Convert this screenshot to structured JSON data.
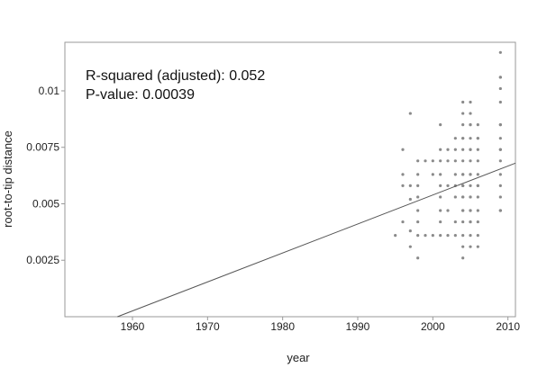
{
  "chart_data": {
    "type": "scatter",
    "title": "",
    "xlabel": "year",
    "ylabel": "root-to-tip distance",
    "xlim": [
      1951,
      2011
    ],
    "ylim": [
      0,
      0.01215
    ],
    "xticks": [
      1960,
      1970,
      1980,
      1990,
      2000,
      2010
    ],
    "xtick_labels": [
      "1960",
      "1970",
      "1980",
      "1990",
      "2000",
      "2010"
    ],
    "yticks": [
      0.0025,
      0.005,
      0.0075,
      0.01
    ],
    "ytick_labels": [
      "0.0025",
      "0.005",
      "0.0075",
      "0.01"
    ],
    "grid": false,
    "annotations": [
      "R-squared (adjusted): 0.052",
      "P-value: 0.00039"
    ],
    "regression_line": {
      "x": [
        1958,
        2011
      ],
      "y": [
        0.0,
        0.0068
      ]
    },
    "colors": {
      "points": "#8a8a8a",
      "line": "#555555",
      "frame": "#999999"
    },
    "points": {
      "x": [
        1995,
        1996,
        1996,
        1996,
        1996,
        1997,
        1997,
        1997,
        1997,
        1997,
        1998,
        1998,
        1998,
        1998,
        1998,
        1998,
        1998,
        1998,
        1999,
        1999,
        2000,
        2000,
        2000,
        2001,
        2001,
        2001,
        2001,
        2001,
        2001,
        2001,
        2001,
        2001,
        2002,
        2002,
        2002,
        2002,
        2002,
        2003,
        2003,
        2003,
        2003,
        2003,
        2003,
        2003,
        2003,
        2004,
        2004,
        2004,
        2004,
        2004,
        2004,
        2004,
        2004,
        2004,
        2004,
        2004,
        2004,
        2004,
        2004,
        2004,
        2004,
        2004,
        2004,
        2004,
        2005,
        2005,
        2005,
        2005,
        2005,
        2005,
        2005,
        2005,
        2005,
        2005,
        2005,
        2005,
        2005,
        2005,
        2005,
        2005,
        2005,
        2005,
        2005,
        2006,
        2006,
        2006,
        2006,
        2006,
        2006,
        2006,
        2006,
        2006,
        2006,
        2006,
        2006,
        2006,
        2009,
        2009,
        2009,
        2009,
        2009,
        2009,
        2009,
        2009,
        2009,
        2009,
        2009,
        2009,
        2009,
        2009,
        2009,
        2009
      ],
      "y": [
        0.0036,
        0.0074,
        0.0063,
        0.0058,
        0.0042,
        0.009,
        0.0058,
        0.0052,
        0.0038,
        0.0031,
        0.0069,
        0.0063,
        0.0058,
        0.0053,
        0.0047,
        0.0042,
        0.0036,
        0.0026,
        0.0069,
        0.0036,
        0.0069,
        0.0063,
        0.0036,
        0.0085,
        0.0074,
        0.0069,
        0.0063,
        0.0058,
        0.0053,
        0.0047,
        0.0042,
        0.0036,
        0.0074,
        0.0069,
        0.0058,
        0.0047,
        0.0036,
        0.0079,
        0.0074,
        0.0069,
        0.0063,
        0.0058,
        0.0053,
        0.0042,
        0.0036,
        0.0095,
        0.009,
        0.0085,
        0.0079,
        0.0074,
        0.0069,
        0.0063,
        0.0058,
        0.0053,
        0.0047,
        0.0042,
        0.0036,
        0.0031,
        0.0026,
        0.0063,
        0.0053,
        0.0047,
        0.0079,
        0.0058,
        0.0095,
        0.0085,
        0.0079,
        0.0074,
        0.0069,
        0.0063,
        0.0058,
        0.0053,
        0.0047,
        0.0042,
        0.0036,
        0.0031,
        0.0085,
        0.0074,
        0.0063,
        0.0053,
        0.0047,
        0.0042,
        0.009,
        0.0085,
        0.0079,
        0.0074,
        0.0069,
        0.0063,
        0.0058,
        0.0053,
        0.0047,
        0.0042,
        0.0036,
        0.0031,
        0.0079,
        0.0058,
        0.0117,
        0.0106,
        0.0101,
        0.0095,
        0.0085,
        0.0079,
        0.0074,
        0.0069,
        0.0063,
        0.0058,
        0.0053,
        0.0047,
        0.0106,
        0.0085,
        0.0074,
        0.0047
      ]
    }
  }
}
